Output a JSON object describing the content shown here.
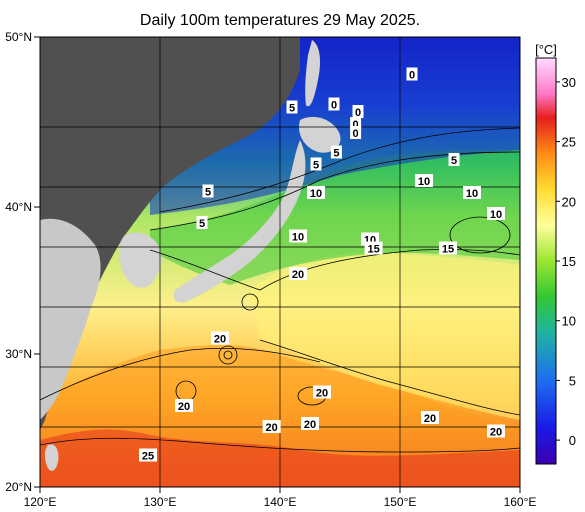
{
  "title": "Daily 100m temperatures 29 May 2025.",
  "colorbar": {
    "unit": "[°C]",
    "ticks": [
      "30",
      "25",
      "20",
      "15",
      "10",
      "5",
      "0"
    ],
    "range": [
      -2,
      32
    ],
    "stops": [
      {
        "t": -2,
        "color": "#3a00b0"
      },
      {
        "t": 1,
        "color": "#1a1ae6"
      },
      {
        "t": 5,
        "color": "#1e6ef0"
      },
      {
        "t": 9,
        "color": "#1fb4a0"
      },
      {
        "t": 12,
        "color": "#32c832"
      },
      {
        "t": 15,
        "color": "#9be632"
      },
      {
        "t": 18,
        "color": "#ffff9b"
      },
      {
        "t": 21,
        "color": "#ffdc32"
      },
      {
        "t": 24,
        "color": "#ff8c14"
      },
      {
        "t": 27,
        "color": "#e61e1e"
      },
      {
        "t": 29,
        "color": "#ff78c8"
      },
      {
        "t": 32,
        "color": "#ffdcff"
      }
    ]
  },
  "axes": {
    "x_labels": [
      "120°E",
      "130°E",
      "140°E",
      "150°E",
      "160°E"
    ],
    "y_labels": [
      "50°N",
      "40°N",
      "30°N",
      "20°N"
    ]
  },
  "chart_data": {
    "type": "heatmap",
    "title": "Daily 100m temperatures 29 May 2025.",
    "x_range_lon": [
      120,
      160
    ],
    "y_range_lat": [
      20,
      50
    ],
    "contour_labels": [
      {
        "text": "0",
        "lon": 151.0,
        "lat": 47.5
      },
      {
        "text": "0",
        "lon": 144.5,
        "lat": 45.5
      },
      {
        "text": "0",
        "lon": 146.5,
        "lat": 45.0
      },
      {
        "text": "0",
        "lon": 146.3,
        "lat": 44.2
      },
      {
        "text": "0",
        "lon": 146.3,
        "lat": 43.6
      },
      {
        "text": "5",
        "lon": 141.0,
        "lat": 45.3
      },
      {
        "text": "5",
        "lon": 144.7,
        "lat": 42.3
      },
      {
        "text": "5",
        "lon": 143.0,
        "lat": 41.5
      },
      {
        "text": "5",
        "lon": 154.5,
        "lat": 41.8
      },
      {
        "text": "5",
        "lon": 134.0,
        "lat": 39.7
      },
      {
        "text": "5",
        "lon": 133.5,
        "lat": 37.6
      },
      {
        "text": "10",
        "lon": 152.0,
        "lat": 40.4
      },
      {
        "text": "10",
        "lon": 143.0,
        "lat": 39.6
      },
      {
        "text": "10",
        "lon": 156.0,
        "lat": 39.6
      },
      {
        "text": "10",
        "lon": 158.0,
        "lat": 38.2
      },
      {
        "text": "10",
        "lon": 141.5,
        "lat": 36.7
      },
      {
        "text": "10",
        "lon": 147.5,
        "lat": 36.5
      },
      {
        "text": "15",
        "lon": 147.8,
        "lat": 35.9
      },
      {
        "text": "15",
        "lon": 154.0,
        "lat": 35.9
      },
      {
        "text": "20",
        "lon": 141.5,
        "lat": 34.2
      },
      {
        "text": "20",
        "lon": 135.0,
        "lat": 29.9
      },
      {
        "text": "20",
        "lon": 143.5,
        "lat": 26.3
      },
      {
        "text": "20",
        "lon": 132.0,
        "lat": 25.4
      },
      {
        "text": "20",
        "lon": 152.5,
        "lat": 24.6
      },
      {
        "text": "20",
        "lon": 142.5,
        "lat": 24.2
      },
      {
        "text": "20",
        "lon": 139.3,
        "lat": 24.0
      },
      {
        "text": "20",
        "lon": 158.0,
        "lat": 23.7
      },
      {
        "text": "25",
        "lon": 129.0,
        "lat": 22.1
      }
    ]
  }
}
